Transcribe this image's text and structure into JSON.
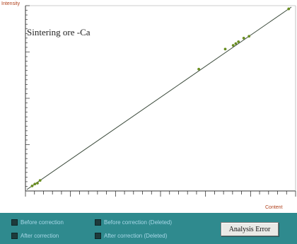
{
  "chart_data": {
    "type": "scatter",
    "title": "Sintering ore -Ca",
    "xlabel": "Content",
    "ylabel": "Intensity",
    "xlim": [
      0,
      1
    ],
    "ylim": [
      0,
      1
    ],
    "grid": false,
    "fit_line": {
      "x": [
        0.0,
        1.0
      ],
      "y": [
        0.0,
        1.0
      ]
    },
    "points": [
      {
        "x": 0.02,
        "y": 0.02
      },
      {
        "x": 0.03,
        "y": 0.03
      },
      {
        "x": 0.04,
        "y": 0.035
      },
      {
        "x": 0.05,
        "y": 0.05
      },
      {
        "x": 0.65,
        "y": 0.66
      },
      {
        "x": 0.75,
        "y": 0.77
      },
      {
        "x": 0.78,
        "y": 0.79
      },
      {
        "x": 0.79,
        "y": 0.8
      },
      {
        "x": 0.8,
        "y": 0.81
      },
      {
        "x": 0.82,
        "y": 0.83
      },
      {
        "x": 0.84,
        "y": 0.84
      },
      {
        "x": 0.99,
        "y": 0.99
      }
    ],
    "colors": {
      "line": "#3b4a3b",
      "point": "#6a8e22",
      "axis": "#333333",
      "axis_title": "#b0401a"
    }
  },
  "legend": {
    "items": [
      {
        "label": "Before correction"
      },
      {
        "label": "Before correction (Deleted)"
      },
      {
        "label": "After correction"
      },
      {
        "label": "After correction (Deleted)"
      }
    ]
  },
  "buttons": {
    "analysis_error": "Analysis Error"
  },
  "colors": {
    "panel_bg": "#2f8a8e",
    "legend_text": "#a8d8e8"
  }
}
